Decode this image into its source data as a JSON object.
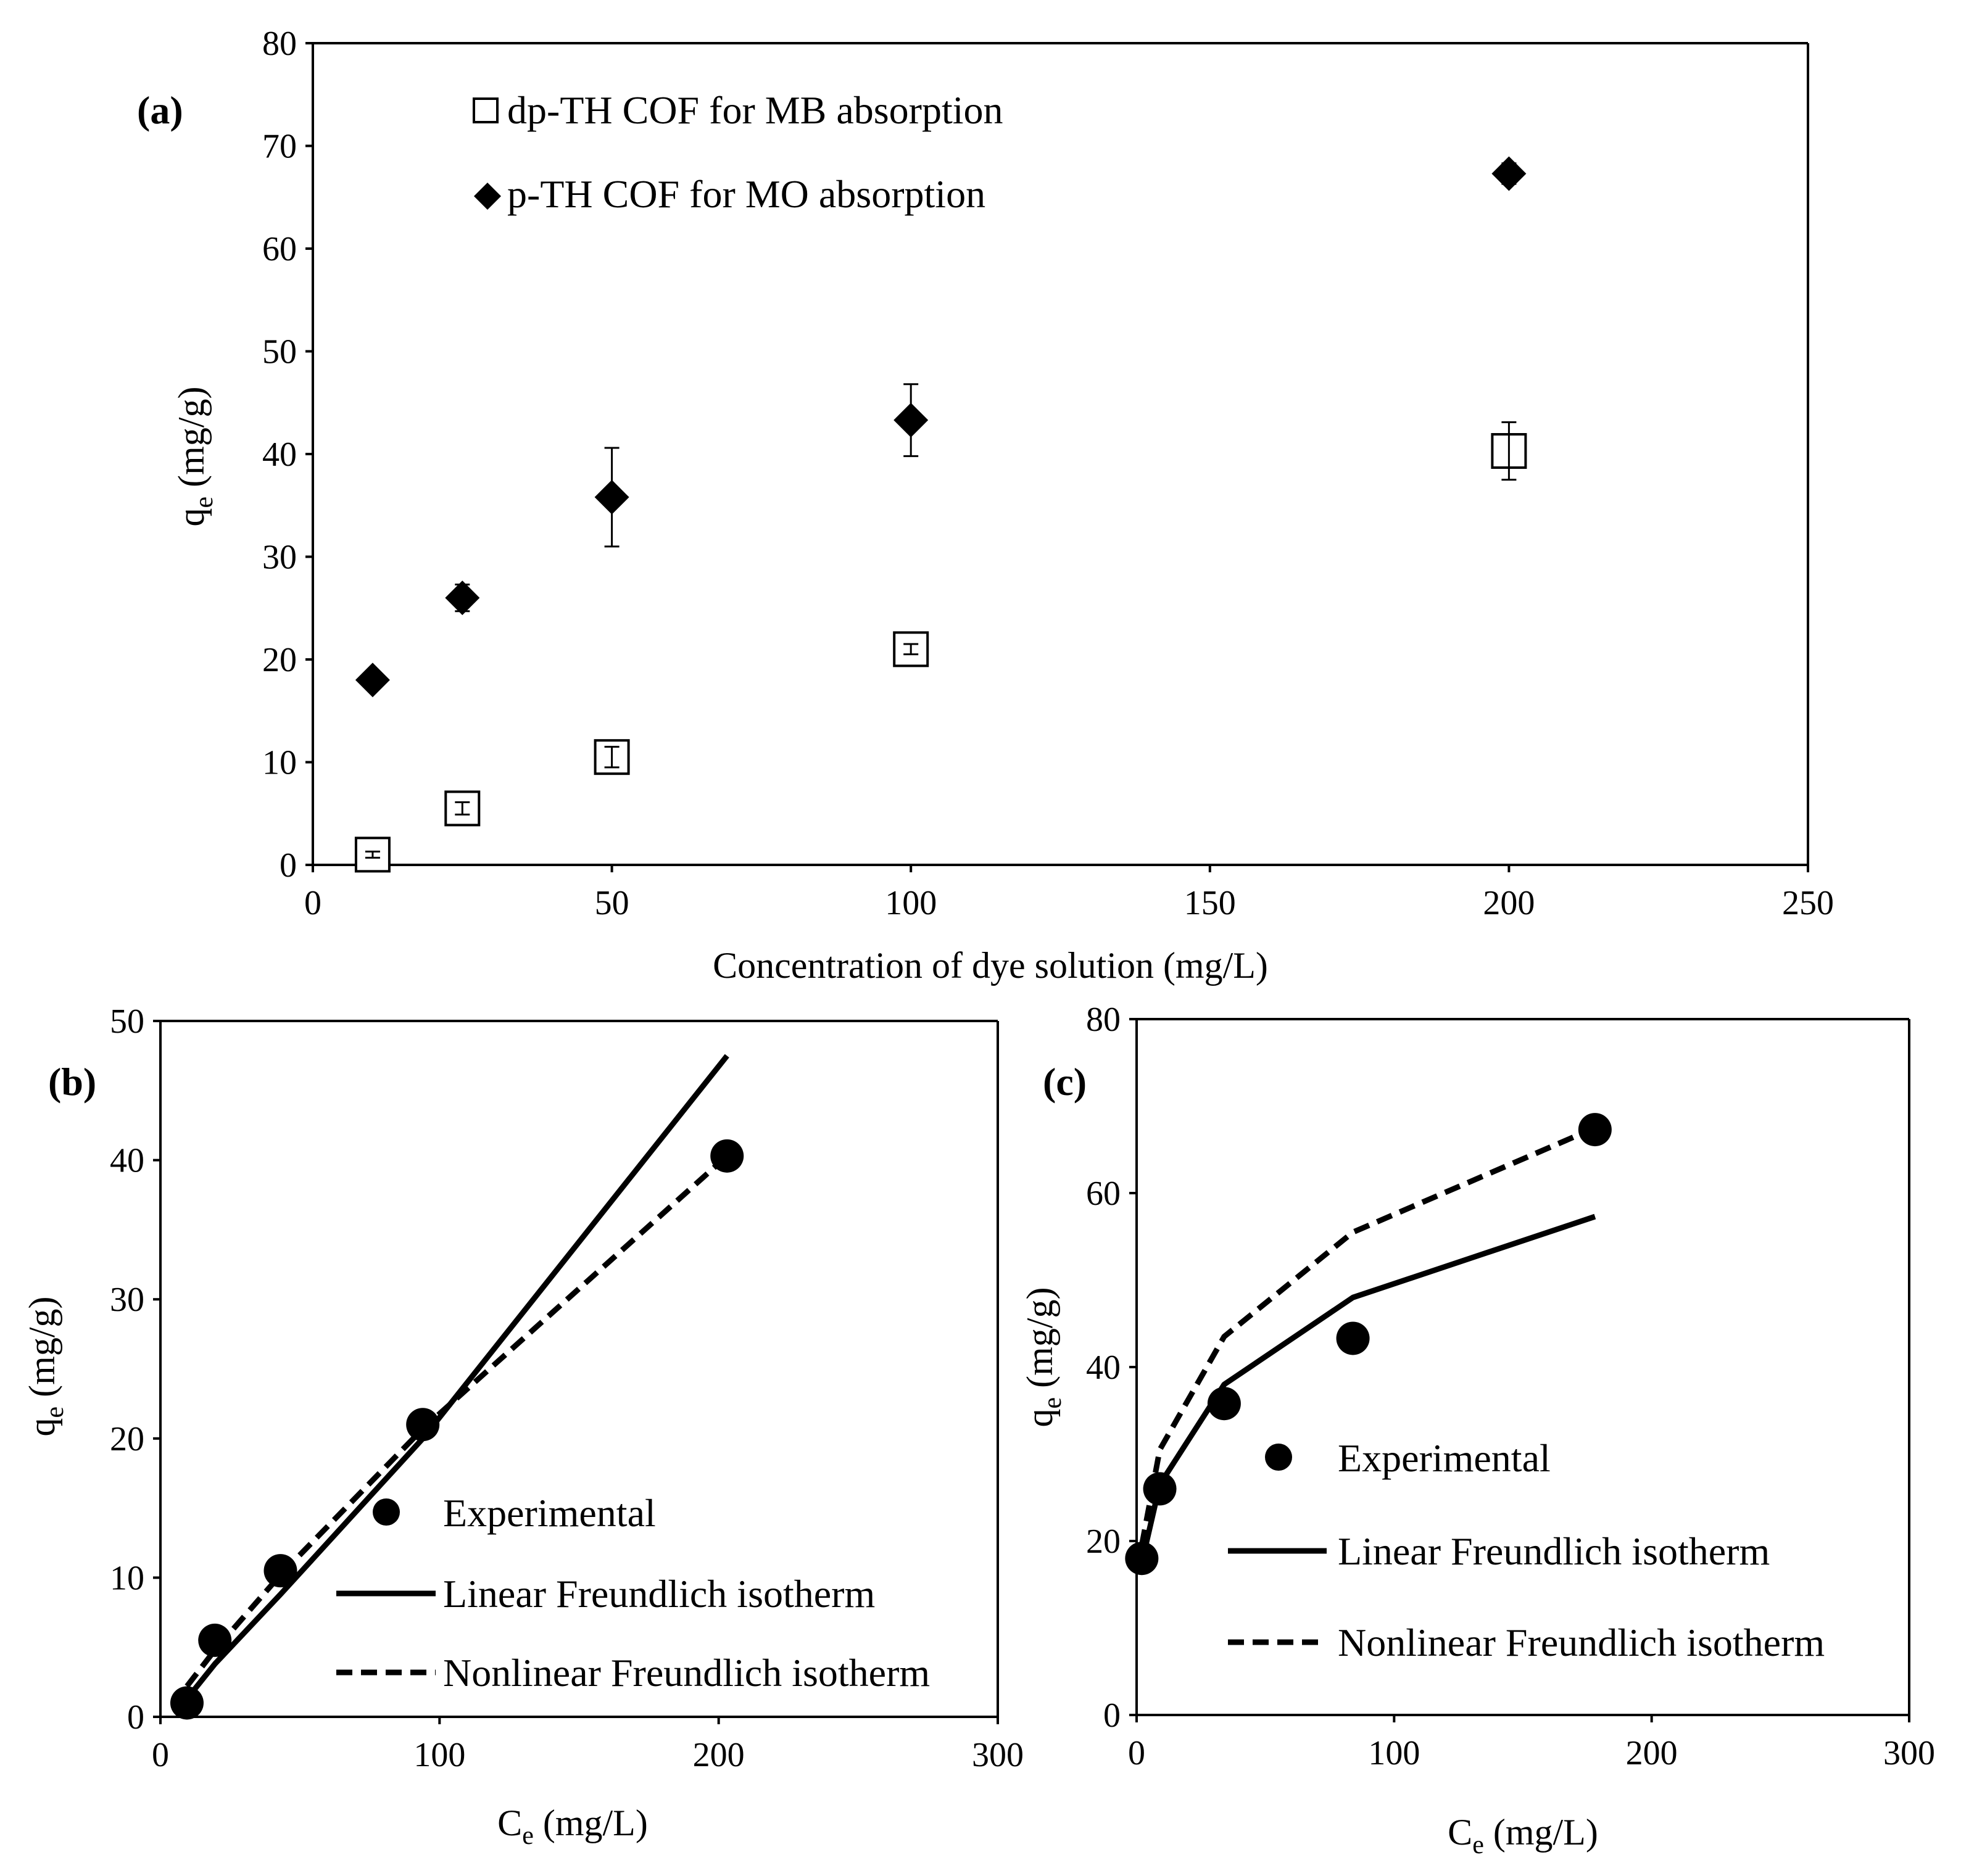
{
  "colors": {
    "ink": "#000000",
    "background": "#ffffff"
  },
  "chart_data": [
    {
      "id": "a",
      "type": "scatter",
      "panel_label": "(a)",
      "xlabel": "Concentration of dye solution (mg/L)",
      "ylabel_main": "q",
      "ylabel_sub": "e",
      "ylabel_rest": " (mg/g)",
      "xlim": [
        0,
        250
      ],
      "ylim": [
        0,
        80
      ],
      "xticks": [
        0,
        50,
        100,
        150,
        200,
        250
      ],
      "yticks": [
        0,
        10,
        20,
        30,
        40,
        50,
        60,
        70,
        80
      ],
      "legend_position": "top-left",
      "series": [
        {
          "name": "dp-TH COF for MB absorption",
          "marker": "square-open",
          "x": [
            10,
            25,
            50,
            100,
            200
          ],
          "y": [
            1.0,
            5.5,
            10.5,
            21.0,
            40.3
          ],
          "err": [
            0.3,
            0.6,
            1.0,
            0.5,
            2.8
          ]
        },
        {
          "name": "p-TH COF for MO absorption",
          "marker": "diamond",
          "x": [
            10,
            25,
            50,
            100,
            200
          ],
          "y": [
            18.0,
            26.0,
            35.8,
            43.3,
            67.3
          ],
          "err": [
            0.3,
            1.3,
            4.8,
            3.5,
            1.0
          ]
        }
      ]
    },
    {
      "id": "b",
      "type": "line",
      "panel_label": "(b)",
      "xlabel_main": "C",
      "xlabel_sub": "e",
      "xlabel_rest": " (mg/L)",
      "ylabel_main": "q",
      "ylabel_sub": "e",
      "ylabel_rest": " (mg/g)",
      "xlim": [
        0,
        300
      ],
      "ylim": [
        0,
        50
      ],
      "xticks": [
        0,
        100,
        200,
        300
      ],
      "yticks": [
        0,
        10,
        20,
        30,
        40,
        50
      ],
      "legend_position": "bottom-right",
      "series": [
        {
          "name": "Experimental",
          "style": "markers",
          "x": [
            9.5,
            19.5,
            43,
            94,
            203
          ],
          "y": [
            1.0,
            5.5,
            10.5,
            21.0,
            40.3
          ]
        },
        {
          "name": "Linear Freundlich isotherm",
          "style": "solid",
          "x": [
            9.5,
            19.5,
            43,
            94,
            203
          ],
          "y": [
            1.3,
            3.8,
            8.8,
            20.0,
            47.5
          ]
        },
        {
          "name": "Nonlinear Freundlich isotherm",
          "style": "dashed",
          "x": [
            9.5,
            19.5,
            43,
            94,
            203
          ],
          "y": [
            2.2,
            4.8,
            10.2,
            20.7,
            40.3
          ]
        }
      ]
    },
    {
      "id": "c",
      "type": "line",
      "panel_label": "(c)",
      "xlabel_main": "C",
      "xlabel_sub": "e",
      "xlabel_rest": " (mg/L)",
      "ylabel_main": "q",
      "ylabel_sub": "e",
      "ylabel_rest": " (mg/g)",
      "xlim": [
        0,
        300
      ],
      "ylim": [
        0,
        80
      ],
      "xticks": [
        0,
        100,
        200,
        300
      ],
      "yticks": [
        0,
        20,
        40,
        60,
        80
      ],
      "legend_position": "center-right",
      "series": [
        {
          "name": "Experimental",
          "style": "markers",
          "x": [
            2,
            9,
            34,
            84,
            178
          ],
          "y": [
            18.0,
            26.0,
            35.8,
            43.3,
            67.3
          ]
        },
        {
          "name": "Linear Freundlich isotherm",
          "style": "solid",
          "x": [
            2,
            9,
            34,
            84,
            178
          ],
          "y": [
            17.5,
            26.5,
            38.0,
            48.0,
            57.3
          ]
        },
        {
          "name": "Nonlinear Freundlich isotherm",
          "style": "dashed",
          "x": [
            2,
            9,
            34,
            84,
            178
          ],
          "y": [
            19.5,
            30.5,
            43.5,
            55.5,
            67.5
          ]
        }
      ]
    }
  ]
}
